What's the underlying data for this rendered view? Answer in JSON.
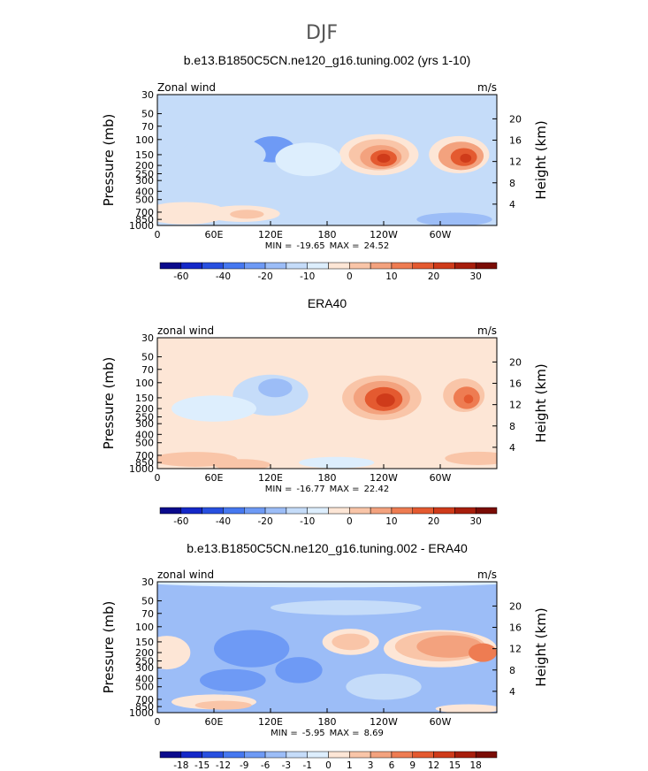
{
  "figure": {
    "title": "DJF"
  },
  "colors": {
    "scale": [
      "#0a0a8c",
      "#1428c8",
      "#2850e0",
      "#4678f0",
      "#6e9af5",
      "#9cbdf7",
      "#c5dcf9",
      "#ddeefd",
      "#fde6d6",
      "#f9c5a8",
      "#f3a27e",
      "#ee7c52",
      "#e45a30",
      "#cf3b1a",
      "#a71e0c",
      "#7a0c05"
    ]
  },
  "chart_data": [
    {
      "type": "heatmap",
      "title": "b.e13.B1850C5CN.ne120_g16.tuning.002 (yrs 1-10)",
      "corner_left": "Zonal wind",
      "corner_right": "m/s",
      "ylabel_left": "Pressure (mb)",
      "ylabel_right": "Height (km)",
      "pressure_ticks": [
        "30",
        "50",
        "70",
        "100",
        "150",
        "200",
        "250",
        "300",
        "400",
        "500",
        "700",
        "850",
        "1000"
      ],
      "height_ticks": [
        "4",
        "8",
        "12",
        "16",
        "20"
      ],
      "lon_ticks": [
        "0",
        "60E",
        "120E",
        "180",
        "120W",
        "60W"
      ],
      "min_label": "MIN =",
      "min": "-19.65",
      "max_label": "MAX =",
      "max": "24.52",
      "colorbar_labels": [
        "-60",
        "-40",
        "-20",
        "-10",
        "0",
        "10",
        "20",
        "30"
      ],
      "colorbar_bins": 16,
      "background_level": 6,
      "blobs": [
        {
          "lon": 122,
          "p": 130,
          "dlon": 24,
          "dp": 0.35,
          "level": 4
        },
        {
          "lon": 70,
          "p": 150,
          "dlon": 45,
          "dp": 0.5,
          "level": 6
        },
        {
          "lon": 235,
          "p": 150,
          "dlon": 42,
          "dp": 0.55,
          "level": 8
        },
        {
          "lon": 235,
          "p": 150,
          "dlon": 32,
          "dp": 0.42,
          "level": 9
        },
        {
          "lon": 237,
          "p": 160,
          "dlon": 22,
          "dp": 0.32,
          "level": 10
        },
        {
          "lon": 240,
          "p": 165,
          "dlon": 14,
          "dp": 0.22,
          "level": 12
        },
        {
          "lon": 240,
          "p": 165,
          "dlon": 7,
          "dp": 0.12,
          "level": 13
        },
        {
          "lon": 320,
          "p": 150,
          "dlon": 32,
          "dp": 0.5,
          "level": 8
        },
        {
          "lon": 322,
          "p": 155,
          "dlon": 24,
          "dp": 0.38,
          "level": 10
        },
        {
          "lon": 325,
          "p": 160,
          "dlon": 14,
          "dp": 0.24,
          "level": 12
        },
        {
          "lon": 327,
          "p": 165,
          "dlon": 6,
          "dp": 0.12,
          "level": 13
        },
        {
          "lon": 30,
          "p": 720,
          "dlon": 45,
          "dp": 0.3,
          "level": 8
        },
        {
          "lon": 90,
          "p": 730,
          "dlon": 40,
          "dp": 0.22,
          "level": 8
        },
        {
          "lon": 95,
          "p": 740,
          "dlon": 18,
          "dp": 0.12,
          "level": 9
        },
        {
          "lon": 315,
          "p": 850,
          "dlon": 40,
          "dp": 0.18,
          "level": 5
        },
        {
          "lon": 160,
          "p": 170,
          "dlon": 35,
          "dp": 0.45,
          "level": 7
        }
      ]
    },
    {
      "type": "heatmap",
      "title": "ERA40",
      "corner_left": "zonal wind",
      "corner_right": "m/s",
      "ylabel_left": "Pressure (mb)",
      "ylabel_right": "Height (km)",
      "pressure_ticks": [
        "30",
        "50",
        "70",
        "100",
        "150",
        "200",
        "250",
        "300",
        "400",
        "500",
        "700",
        "850",
        "1000"
      ],
      "height_ticks": [
        "4",
        "8",
        "12",
        "16",
        "20"
      ],
      "lon_ticks": [
        "0",
        "60E",
        "120E",
        "180",
        "120W",
        "60W"
      ],
      "min_label": "MIN =",
      "min": "-16.77",
      "max_label": "MAX =",
      "max": "22.42",
      "colorbar_labels": [
        "-60",
        "-40",
        "-20",
        "-10",
        "0",
        "10",
        "20",
        "30"
      ],
      "colorbar_bins": 16,
      "background_level": 8,
      "blobs": [
        {
          "lon": 120,
          "p": 140,
          "dlon": 40,
          "dp": 0.55,
          "level": 6
        },
        {
          "lon": 60,
          "p": 200,
          "dlon": 45,
          "dp": 0.35,
          "level": 7
        },
        {
          "lon": 125,
          "p": 115,
          "dlon": 18,
          "dp": 0.25,
          "level": 5
        },
        {
          "lon": 238,
          "p": 150,
          "dlon": 42,
          "dp": 0.6,
          "level": 9
        },
        {
          "lon": 238,
          "p": 150,
          "dlon": 30,
          "dp": 0.45,
          "level": 10
        },
        {
          "lon": 240,
          "p": 155,
          "dlon": 20,
          "dp": 0.32,
          "level": 12
        },
        {
          "lon": 242,
          "p": 160,
          "dlon": 10,
          "dp": 0.18,
          "level": 13
        },
        {
          "lon": 325,
          "p": 140,
          "dlon": 22,
          "dp": 0.45,
          "level": 9
        },
        {
          "lon": 328,
          "p": 150,
          "dlon": 14,
          "dp": 0.3,
          "level": 11
        },
        {
          "lon": 330,
          "p": 155,
          "dlon": 5,
          "dp": 0.12,
          "level": 12
        },
        {
          "lon": 40,
          "p": 780,
          "dlon": 45,
          "dp": 0.2,
          "level": 9
        },
        {
          "lon": 90,
          "p": 900,
          "dlon": 30,
          "dp": 0.15,
          "level": 9
        },
        {
          "lon": 340,
          "p": 760,
          "dlon": 35,
          "dp": 0.18,
          "level": 9
        },
        {
          "lon": 190,
          "p": 850,
          "dlon": 40,
          "dp": 0.15,
          "level": 7
        }
      ]
    },
    {
      "type": "heatmap",
      "title": "b.e13.B1850C5CN.ne120_g16.tuning.002 - ERA40",
      "corner_left": "zonal wind",
      "corner_right": "m/s",
      "ylabel_left": "Pressure (mb)",
      "ylabel_right": "Height (km)",
      "pressure_ticks": [
        "30",
        "50",
        "70",
        "100",
        "150",
        "200",
        "250",
        "300",
        "400",
        "500",
        "700",
        "850",
        "1000"
      ],
      "height_ticks": [
        "4",
        "8",
        "12",
        "16",
        "20"
      ],
      "lon_ticks": [
        "0",
        "60E",
        "120E",
        "180",
        "120W",
        "60W"
      ],
      "min_label": "MIN =",
      "min": "-5.95",
      "max_label": "MAX =",
      "max": "8.69",
      "colorbar_labels": [
        "-18",
        "-15",
        "-12",
        "-9",
        "-6",
        "-3",
        "-1",
        "0",
        "1",
        "3",
        "6",
        "9",
        "12",
        "15",
        "18"
      ],
      "colorbar_bins": 16,
      "background_level": 5,
      "blobs": [
        {
          "lon": 180,
          "p": 30,
          "dlon": 200,
          "dp": 0.15,
          "level": 7
        },
        {
          "lon": 200,
          "p": 60,
          "dlon": 80,
          "dp": 0.2,
          "level": 6
        },
        {
          "lon": 100,
          "p": 180,
          "dlon": 40,
          "dp": 0.5,
          "level": 4
        },
        {
          "lon": 150,
          "p": 320,
          "dlon": 25,
          "dp": 0.35,
          "level": 4
        },
        {
          "lon": 80,
          "p": 420,
          "dlon": 35,
          "dp": 0.3,
          "level": 4
        },
        {
          "lon": 10,
          "p": 200,
          "dlon": 25,
          "dp": 0.45,
          "level": 8
        },
        {
          "lon": 205,
          "p": 150,
          "dlon": 30,
          "dp": 0.35,
          "level": 8
        },
        {
          "lon": 205,
          "p": 150,
          "dlon": 20,
          "dp": 0.22,
          "level": 9
        },
        {
          "lon": 300,
          "p": 180,
          "dlon": 60,
          "dp": 0.5,
          "level": 8
        },
        {
          "lon": 300,
          "p": 170,
          "dlon": 48,
          "dp": 0.4,
          "level": 9
        },
        {
          "lon": 310,
          "p": 170,
          "dlon": 35,
          "dp": 0.3,
          "level": 10
        },
        {
          "lon": 345,
          "p": 200,
          "dlon": 15,
          "dp": 0.25,
          "level": 11
        },
        {
          "lon": 60,
          "p": 750,
          "dlon": 45,
          "dp": 0.2,
          "level": 8
        },
        {
          "lon": 70,
          "p": 820,
          "dlon": 30,
          "dp": 0.12,
          "level": 9
        },
        {
          "lon": 240,
          "p": 500,
          "dlon": 40,
          "dp": 0.35,
          "level": 6
        },
        {
          "lon": 330,
          "p": 900,
          "dlon": 35,
          "dp": 0.12,
          "level": 8
        }
      ]
    }
  ]
}
